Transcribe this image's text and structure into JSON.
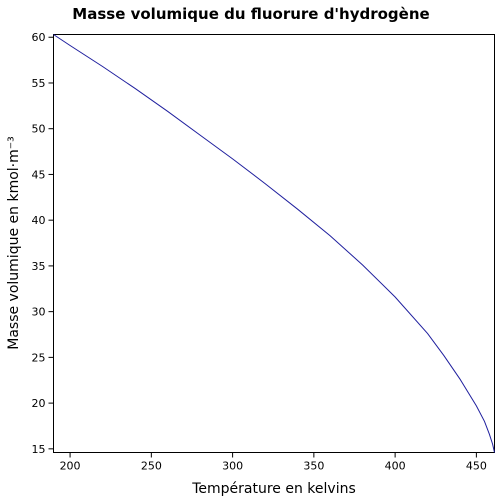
{
  "chart_data": {
    "type": "line",
    "title": "Masse volumique du fluorure d'hydrogène",
    "xlabel": "Température en kelvins",
    "ylabel": "Masse volumique en kmol·m⁻³",
    "xlim": [
      189.8,
      461.15
    ],
    "ylim": [
      14.6,
      60.3
    ],
    "xticks": [
      200,
      250,
      300,
      350,
      400,
      450
    ],
    "yticks": [
      15,
      20,
      25,
      30,
      35,
      40,
      45,
      50,
      55,
      60
    ],
    "grid": false,
    "legend": "none",
    "series": [
      {
        "color": "#1f1f9e",
        "x": [
          189.8,
          200,
          220,
          240,
          260,
          280,
          300,
          320,
          340,
          360,
          380,
          400,
          420,
          430,
          440,
          450,
          455,
          458,
          460,
          461.15
        ],
        "y": [
          60.3,
          59.1,
          56.8,
          54.4,
          51.9,
          49.3,
          46.7,
          44.0,
          41.2,
          38.3,
          35.1,
          31.6,
          27.6,
          25.2,
          22.6,
          19.7,
          18.0,
          16.6,
          15.5,
          14.6
        ]
      }
    ]
  }
}
